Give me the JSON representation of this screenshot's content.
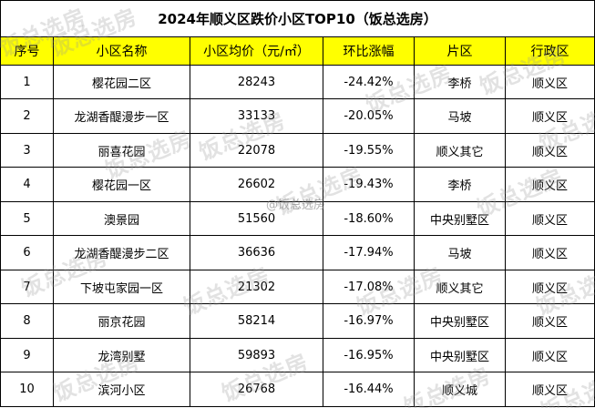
{
  "title": "2024年顺义区跌价小区TOP10（饭总选房）",
  "headers": [
    "序号",
    "小区名称",
    "小区均价（元/㎡）",
    "环比涨幅",
    "片区",
    "行政区"
  ],
  "rows": [
    {
      "rank": "1",
      "name": "樱花园二区",
      "price": "28243",
      "change": "-24.42%",
      "area": "李桥",
      "district": "顺义区"
    },
    {
      "rank": "2",
      "name": "龙湖香醍漫步一区",
      "price": "33133",
      "change": "-20.05%",
      "area": "马坡",
      "district": "顺义区"
    },
    {
      "rank": "3",
      "name": "丽喜花园",
      "price": "22078",
      "change": "-19.55%",
      "area": "顺义其它",
      "district": "顺义区"
    },
    {
      "rank": "4",
      "name": "樱花园一区",
      "price": "26602",
      "change": "-19.43%",
      "area": "李桥",
      "district": "顺义区"
    },
    {
      "rank": "5",
      "name": "澳景园",
      "price": "51560",
      "change": "-18.60%",
      "area": "中央别墅区",
      "district": "顺义区"
    },
    {
      "rank": "6",
      "name": "龙湖香醍漫步二区",
      "price": "36636",
      "change": "-17.94%",
      "area": "马坡",
      "district": "顺义区"
    },
    {
      "rank": "7",
      "name": "下坡屯家园一区",
      "price": "21302",
      "change": "-17.08%",
      "area": "顺义其它",
      "district": "顺义区"
    },
    {
      "rank": "8",
      "name": "丽京花园",
      "price": "58214",
      "change": "-16.97%",
      "area": "中央别墅区",
      "district": "顺义区"
    },
    {
      "rank": "9",
      "name": "龙湾别墅",
      "price": "59893",
      "change": "-16.95%",
      "area": "中央别墅区",
      "district": "顺义区"
    },
    {
      "rank": "10",
      "name": "滨河小区",
      "price": "26768",
      "change": "-16.44%",
      "area": "顺义城",
      "district": "顺义区"
    }
  ],
  "watermark": {
    "logo_text": "饭总选房",
    "center_text": "@饭总选房"
  }
}
